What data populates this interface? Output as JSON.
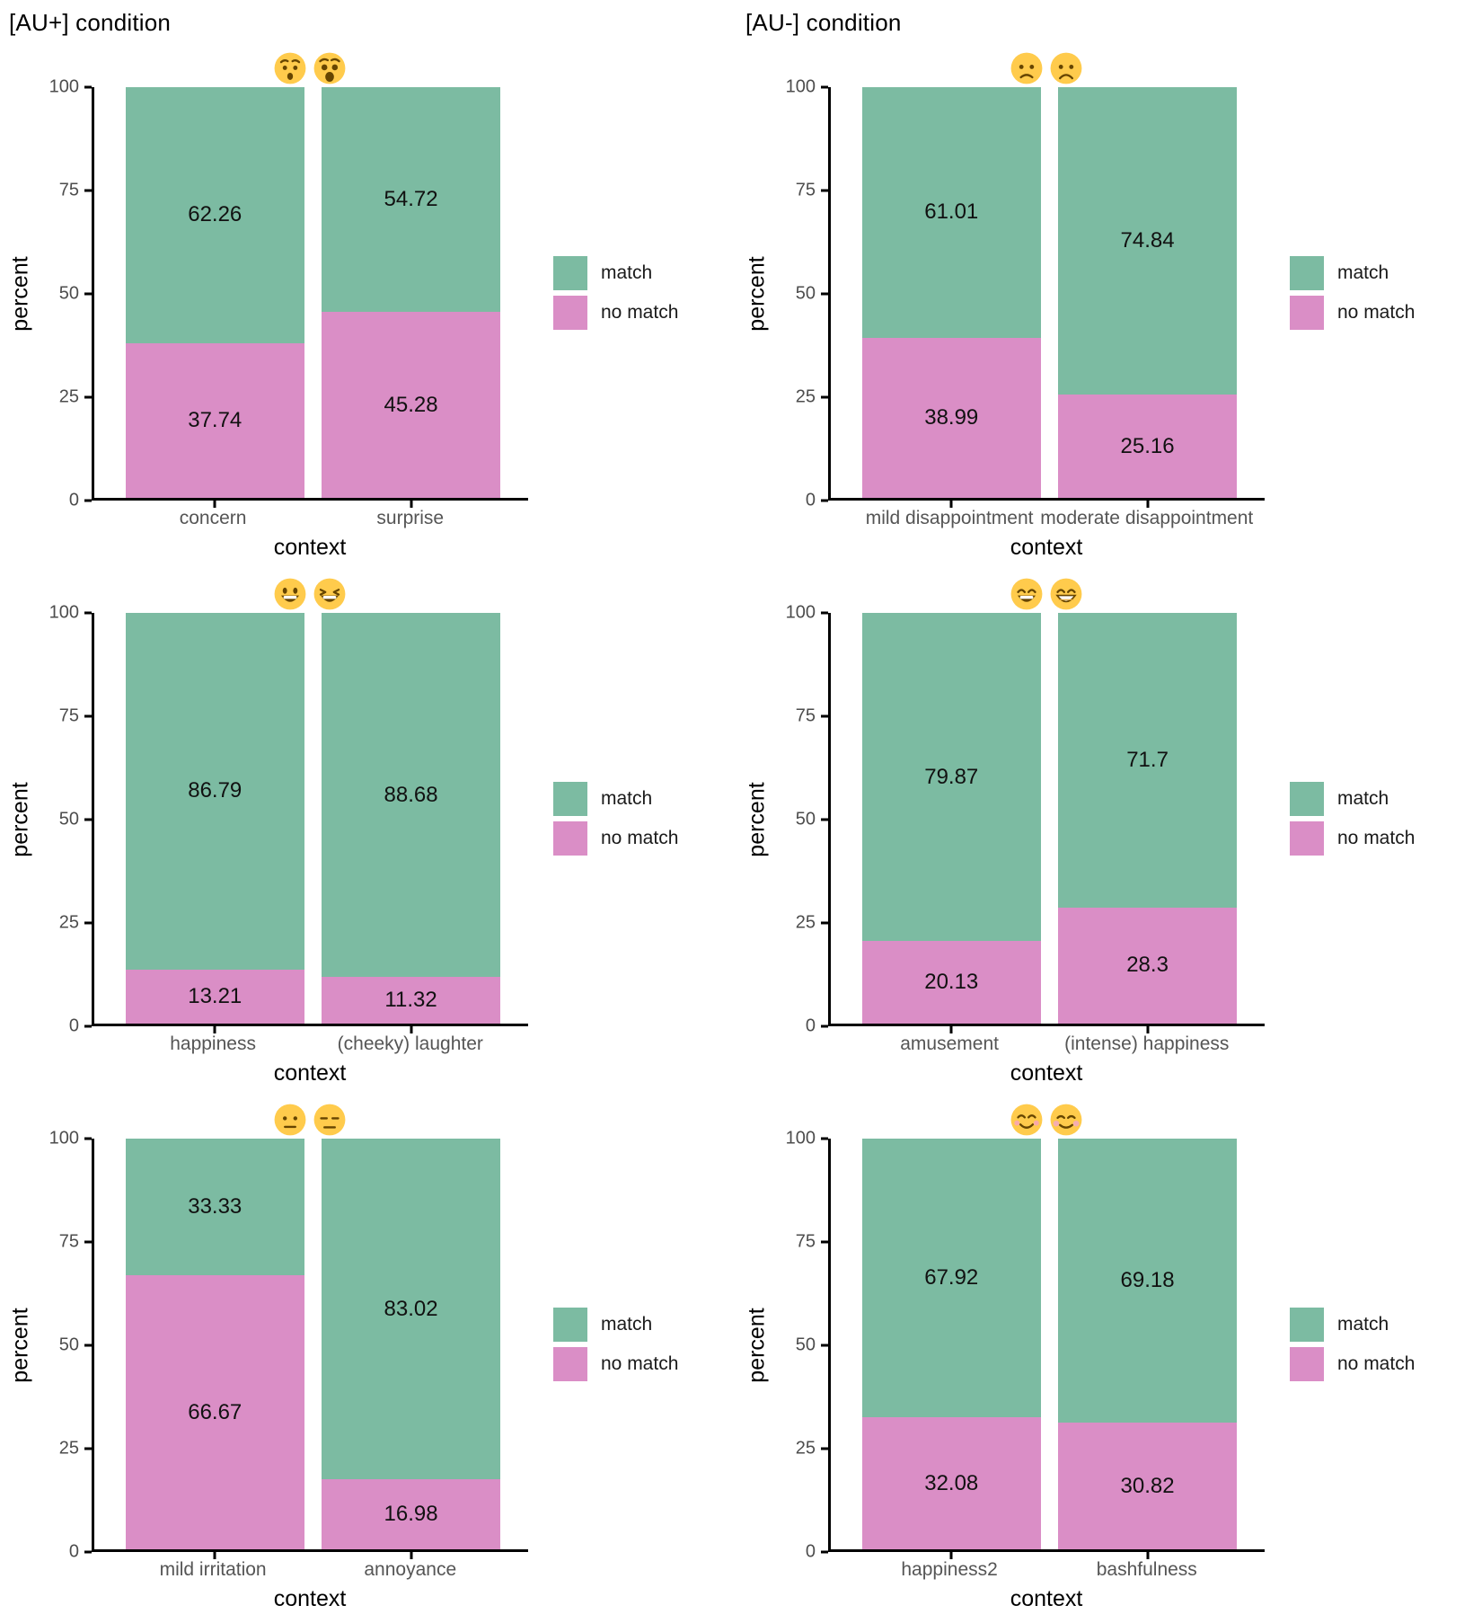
{
  "columns": [
    {
      "title": "[AU+] condition"
    },
    {
      "title": "[AU-] condition"
    }
  ],
  "legend": {
    "match_label": "match",
    "no_match_label": "no match"
  },
  "axis": {
    "y_label": "percent",
    "x_label": "context",
    "y_ticks": [
      "100",
      "75",
      "50",
      "25",
      "0"
    ]
  },
  "colors": {
    "match": "#7CBBA2",
    "no_match": "#DA8EC6",
    "axis_line": "#000000",
    "tick_label": "#4d4d4d",
    "category_label": "#555555",
    "value_label": "#111111"
  },
  "chart_data": [
    {
      "type": "bar",
      "stacked": true,
      "condition": "[AU+]",
      "emojis": [
        "😯",
        "😲"
      ],
      "categories": [
        "concern",
        "surprise"
      ],
      "series": [
        {
          "name": "match",
          "values": [
            62.26,
            54.72
          ]
        },
        {
          "name": "no match",
          "values": [
            37.74,
            45.28
          ]
        }
      ],
      "xlabel": "context",
      "ylabel": "percent",
      "ylim": [
        0,
        100
      ],
      "grid": false,
      "legend_position": "right"
    },
    {
      "type": "bar",
      "stacked": true,
      "condition": "[AU-]",
      "emojis": [
        "🙁",
        "☹️"
      ],
      "categories": [
        "mild disappointment",
        "moderate disappointment"
      ],
      "series": [
        {
          "name": "match",
          "values": [
            61.01,
            74.84
          ]
        },
        {
          "name": "no match",
          "values": [
            38.99,
            25.16
          ]
        }
      ],
      "xlabel": "context",
      "ylabel": "percent",
      "ylim": [
        0,
        100
      ],
      "grid": false,
      "legend_position": "right"
    },
    {
      "type": "bar",
      "stacked": true,
      "condition": "[AU+]",
      "emojis": [
        "😃",
        "😆"
      ],
      "categories": [
        "happiness",
        "(cheeky) laughter"
      ],
      "series": [
        {
          "name": "match",
          "values": [
            86.79,
            88.68
          ]
        },
        {
          "name": "no match",
          "values": [
            13.21,
            11.32
          ]
        }
      ],
      "xlabel": "context",
      "ylabel": "percent",
      "ylim": [
        0,
        100
      ],
      "grid": false,
      "legend_position": "right"
    },
    {
      "type": "bar",
      "stacked": true,
      "condition": "[AU-]",
      "emojis": [
        "😄",
        "😁"
      ],
      "categories": [
        "amusement",
        "(intense) happiness"
      ],
      "series": [
        {
          "name": "match",
          "values": [
            79.87,
            71.7
          ]
        },
        {
          "name": "no match",
          "values": [
            20.13,
            28.3
          ]
        }
      ],
      "xlabel": "context",
      "ylabel": "percent",
      "ylim": [
        0,
        100
      ],
      "grid": false,
      "legend_position": "right"
    },
    {
      "type": "bar",
      "stacked": true,
      "condition": "[AU+]",
      "emojis": [
        "😐",
        "😑"
      ],
      "categories": [
        "mild irritation",
        "annoyance"
      ],
      "series": [
        {
          "name": "match",
          "values": [
            33.33,
            83.02
          ]
        },
        {
          "name": "no match",
          "values": [
            66.67,
            16.98
          ]
        }
      ],
      "xlabel": "context",
      "ylabel": "percent",
      "ylim": [
        0,
        100
      ],
      "grid": false,
      "legend_position": "right"
    },
    {
      "type": "bar",
      "stacked": true,
      "condition": "[AU-]",
      "emojis": [
        "😊",
        "☺️"
      ],
      "categories": [
        "happiness2",
        "bashfulness"
      ],
      "series": [
        {
          "name": "match",
          "values": [
            67.92,
            69.18
          ]
        },
        {
          "name": "no match",
          "values": [
            32.08,
            30.82
          ]
        }
      ],
      "xlabel": "context",
      "ylabel": "percent",
      "ylim": [
        0,
        100
      ],
      "grid": false,
      "legend_position": "right"
    }
  ]
}
